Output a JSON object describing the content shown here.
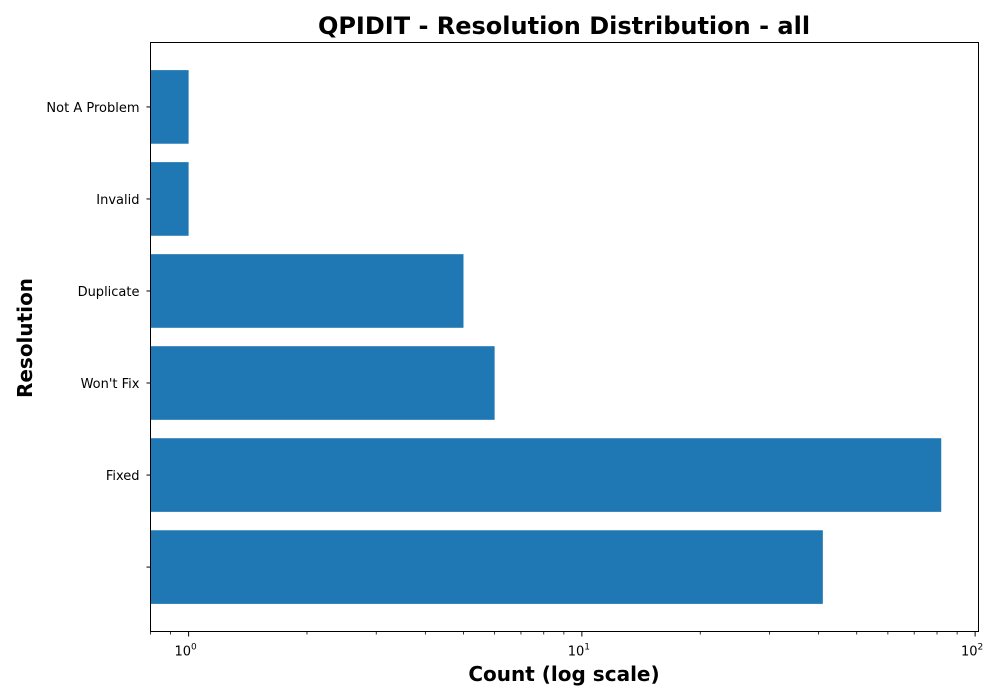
{
  "chart_data": {
    "type": "bar",
    "orientation": "horizontal",
    "title": "QPIDIT - Resolution Distribution - all",
    "xlabel": "Count (log scale)",
    "ylabel": "Resolution",
    "x_scale": "log",
    "xlim": [
      0.8,
      102
    ],
    "x_ticks": [
      {
        "value": 1,
        "base": "10",
        "exp": "0"
      },
      {
        "value": 10,
        "base": "10",
        "exp": "1"
      },
      {
        "value": 100,
        "base": "10",
        "exp": "2"
      }
    ],
    "categories": [
      "",
      "Fixed",
      "Won't Fix",
      "Duplicate",
      "Invalid",
      "Not A Problem"
    ],
    "values": [
      41,
      82,
      6,
      5,
      1,
      1
    ],
    "bar_color": "#1f77b4",
    "grid": false,
    "legend": "none"
  }
}
